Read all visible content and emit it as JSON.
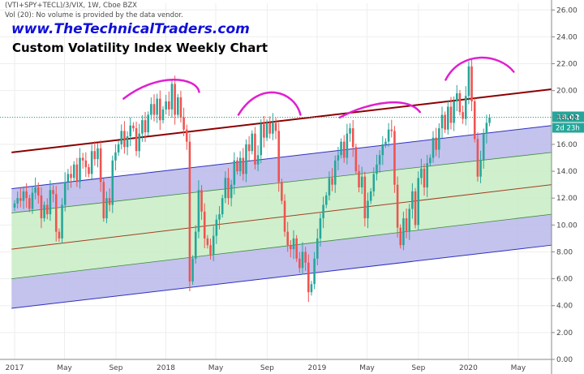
{
  "header": {
    "symbol_line": "(VTI+SPY+TECL)/3/VIX, 1W, Cboe BZX",
    "volume_line": "Vol (20): No volume is provided by the data vendor."
  },
  "watermark": "www.TheTechnicalTraders.com",
  "title": "Custom Volatility Index Weekly Chart",
  "colors": {
    "up_candle": "#26a69a",
    "down_candle": "#ef5350",
    "upper_band_fill": "#b8b8ea",
    "inner_band_fill": "#c8ecc4",
    "resistance_line": "#8b0000",
    "channel_line": "#3030c0",
    "mid_line": "#a04020",
    "arc": "#e020d0",
    "price_line": "#26a69a",
    "price_label": "#26a69a"
  },
  "chart_data": {
    "type": "candlestick",
    "title": "Custom Volatility Index Weekly Chart",
    "x_start": "2017-01",
    "x_end": "2020-07",
    "x_ticks": [
      {
        "label": "2017",
        "date": 2017.0
      },
      {
        "label": "May",
        "date": 2017.33
      },
      {
        "label": "Sep",
        "date": 2017.67
      },
      {
        "label": "2018",
        "date": 2018.0
      },
      {
        "label": "May",
        "date": 2018.33
      },
      {
        "label": "Sep",
        "date": 2018.67
      },
      {
        "label": "2019",
        "date": 2019.0
      },
      {
        "label": "May",
        "date": 2019.33
      },
      {
        "label": "Sep",
        "date": 2019.67
      },
      {
        "label": "2020",
        "date": 2020.0
      },
      {
        "label": "May",
        "date": 2020.33
      }
    ],
    "y_ticks": [
      "0.00",
      "2.00",
      "4.00",
      "6.00",
      "8.00",
      "10.00",
      "12.00",
      "14.00",
      "16.00",
      "18.00",
      "20.00",
      "22.00",
      "24.00",
      "26.00"
    ],
    "ylim": [
      0,
      26.5
    ],
    "last_price": 18.02,
    "last_price_label": "18.02",
    "countdown_label": "2d 23h",
    "closes": [
      11.6,
      12.0,
      11.8,
      12.5,
      12.0,
      11.2,
      12.4,
      12.8,
      12.2,
      10.5,
      11.5,
      10.8,
      12.6,
      12.3,
      9.5,
      9.0,
      11.5,
      13.2,
      13.8,
      13.5,
      14.5,
      13.2,
      15.0,
      14.8,
      14.3,
      13.8,
      15.5,
      14.9,
      15.7,
      13.2,
      10.5,
      12.0,
      11.5,
      14.8,
      15.4,
      16.0,
      17.0,
      15.8,
      16.6,
      17.4,
      17.2,
      15.5,
      16.8,
      17.8,
      16.9,
      18.2,
      19.0,
      18.2,
      19.4,
      17.8,
      18.6,
      19.2,
      18.6,
      20.5,
      18.2,
      19.5,
      18.0,
      17.1,
      16.2,
      5.8,
      7.5,
      9.5,
      12.6,
      11.0,
      9.0,
      8.5,
      7.8,
      9.2,
      10.4,
      10.8,
      12.0,
      13.5,
      12.0,
      13.0,
      14.8,
      14.0,
      15.0,
      13.8,
      16.0,
      15.5,
      16.8,
      14.5,
      15.2,
      17.5,
      16.5,
      17.6,
      16.8,
      17.6,
      17.0,
      13.2,
      11.8,
      9.5,
      8.5,
      8.2,
      9.0,
      7.5,
      6.8,
      8.0,
      7.2,
      5.0,
      5.6,
      7.5,
      9.0,
      10.5,
      11.5,
      12.2,
      13.5,
      13.0,
      14.8,
      15.2,
      16.2,
      15.0,
      16.8,
      17.2,
      15.8,
      14.0,
      12.8,
      13.6,
      10.5,
      11.8,
      12.5,
      13.8,
      14.5,
      15.2,
      16.0,
      16.2,
      17.1,
      17.0,
      13.0,
      9.8,
      8.5,
      10.5,
      9.5,
      11.2,
      12.5,
      10.0,
      13.5,
      14.2,
      12.8,
      14.6,
      15.0,
      16.5,
      15.6,
      17.2,
      18.2,
      17.1,
      18.8,
      17.6,
      19.2,
      19.8,
      18.4,
      17.9,
      19.6,
      21.8,
      19.2,
      16.4,
      13.6,
      14.8,
      16.8,
      17.6,
      18.0
    ]
  }
}
